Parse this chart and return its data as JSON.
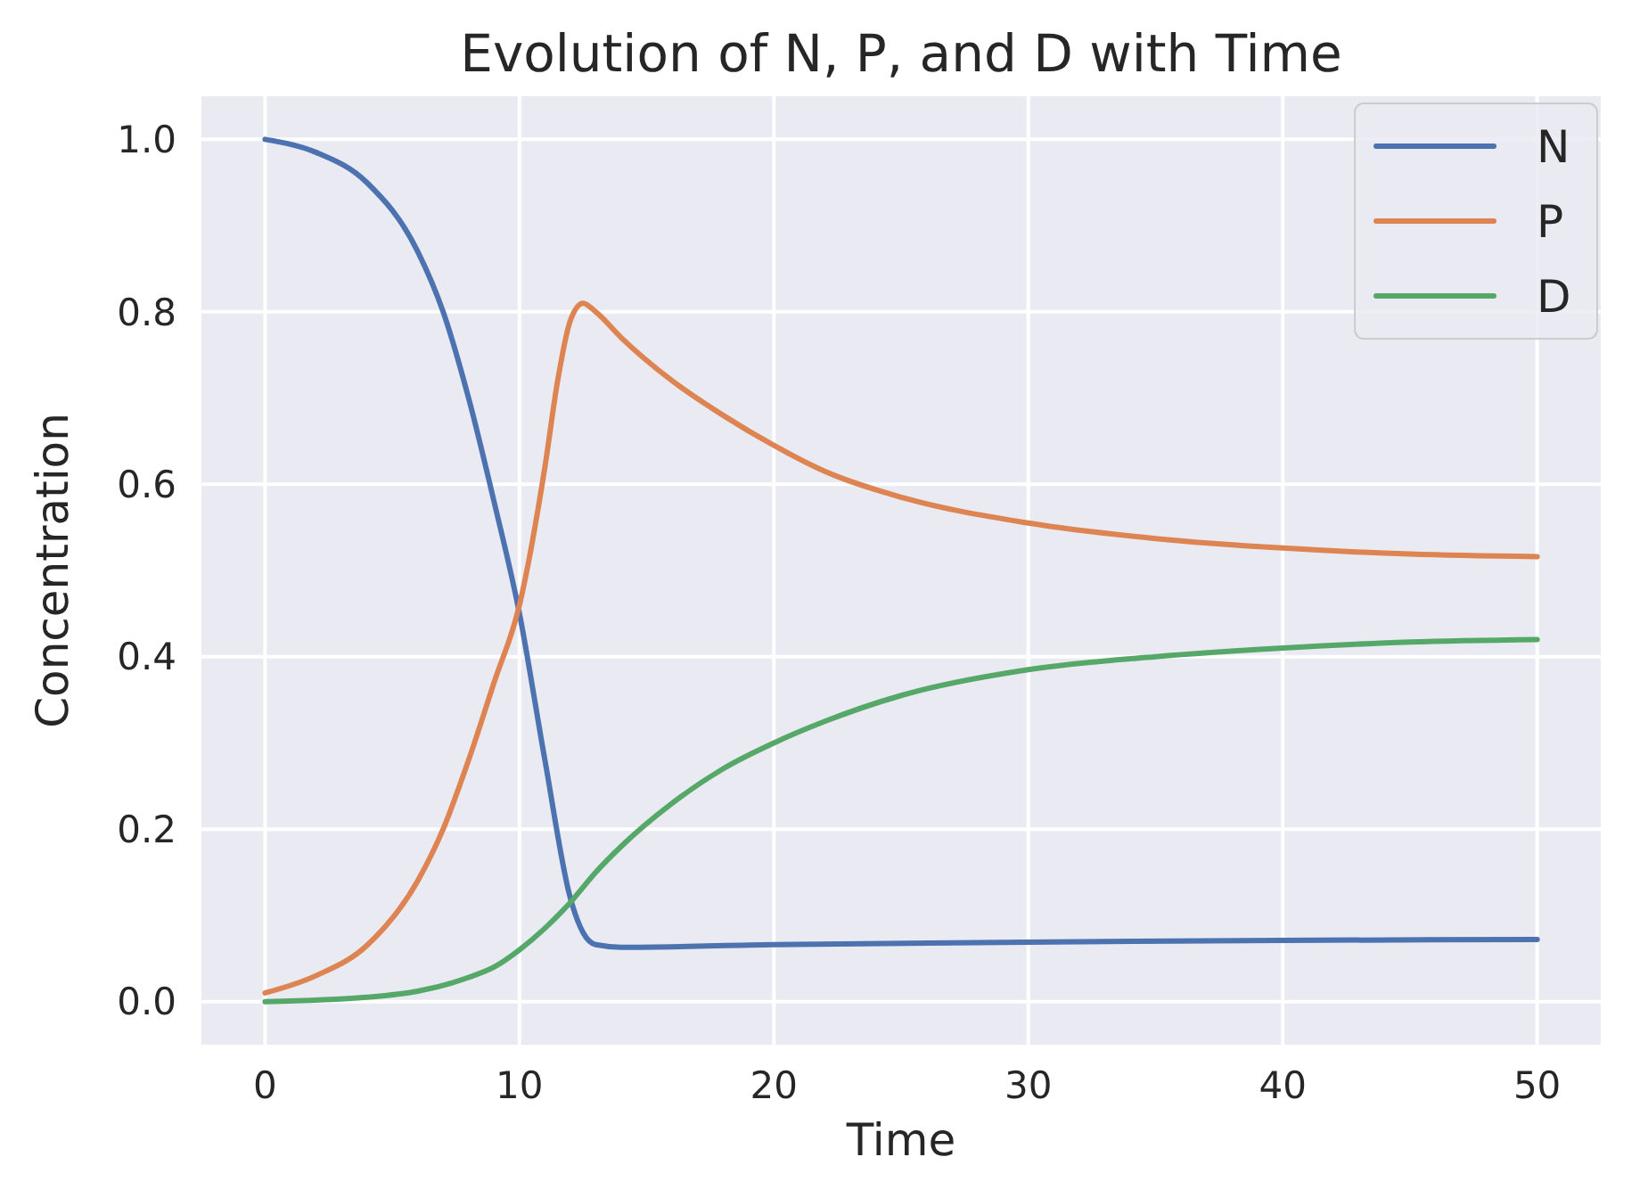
{
  "chart_data": {
    "type": "line",
    "title": "Evolution of N, P, and D with Time",
    "xlabel": "Time",
    "ylabel": "Concentration",
    "xlim": [
      -2.5,
      52.5
    ],
    "xticks": [
      0,
      10,
      20,
      30,
      40,
      50
    ],
    "ylim": [
      -0.05,
      1.05
    ],
    "yticks": [
      {
        "value": 0,
        "label": "0.0"
      },
      {
        "value": 0.2,
        "label": "0.2"
      },
      {
        "value": 0.4,
        "label": "0.4"
      },
      {
        "value": 0.6,
        "label": "0.6"
      },
      {
        "value": 0.8,
        "label": "0.8"
      },
      {
        "value": 1,
        "label": "1.0"
      }
    ],
    "grid": true,
    "legend": "top right",
    "line_style": "solid",
    "series": [
      {
        "name": "N",
        "color": "#4c72b0",
        "x": [
          0,
          2,
          4,
          6,
          7,
          8,
          9,
          10,
          11,
          12,
          12.5,
          13,
          14,
          20,
          30,
          40,
          50
        ],
        "values": [
          1.0,
          0.985,
          0.95,
          0.87,
          0.8,
          0.7,
          0.58,
          0.45,
          0.28,
          0.12,
          0.08,
          0.066,
          0.063,
          0.066,
          0.069,
          0.071,
          0.072
        ]
      },
      {
        "name": "P",
        "color": "#dd8452",
        "x": [
          0,
          2,
          4,
          6,
          7,
          8,
          9,
          10,
          11,
          11.5,
          12,
          12.5,
          13,
          14,
          16,
          18,
          20,
          22,
          25,
          30,
          35,
          40,
          45,
          50
        ],
        "values": [
          0.01,
          0.03,
          0.065,
          0.14,
          0.2,
          0.28,
          0.37,
          0.46,
          0.62,
          0.72,
          0.79,
          0.81,
          0.8,
          0.77,
          0.72,
          0.68,
          0.645,
          0.615,
          0.585,
          0.555,
          0.537,
          0.526,
          0.519,
          0.516
        ]
      },
      {
        "name": "D",
        "color": "#55a868",
        "x": [
          0,
          4,
          6,
          8,
          9,
          10,
          11,
          12,
          13,
          14,
          16,
          18,
          20,
          22,
          25,
          30,
          35,
          40,
          45,
          50
        ],
        "values": [
          0,
          0.005,
          0.012,
          0.028,
          0.04,
          0.06,
          0.085,
          0.115,
          0.15,
          0.18,
          0.23,
          0.27,
          0.3,
          0.325,
          0.355,
          0.385,
          0.4,
          0.41,
          0.417,
          0.42
        ]
      }
    ]
  }
}
